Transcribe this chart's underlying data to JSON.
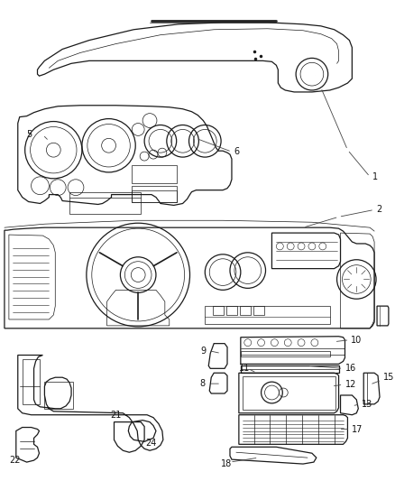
{
  "bg_color": "#ffffff",
  "lc": "#1a1a1a",
  "label_color": "#111111",
  "lw_main": 0.9,
  "lw_detail": 0.5,
  "figsize": [
    4.38,
    5.33
  ],
  "dpi": 100
}
